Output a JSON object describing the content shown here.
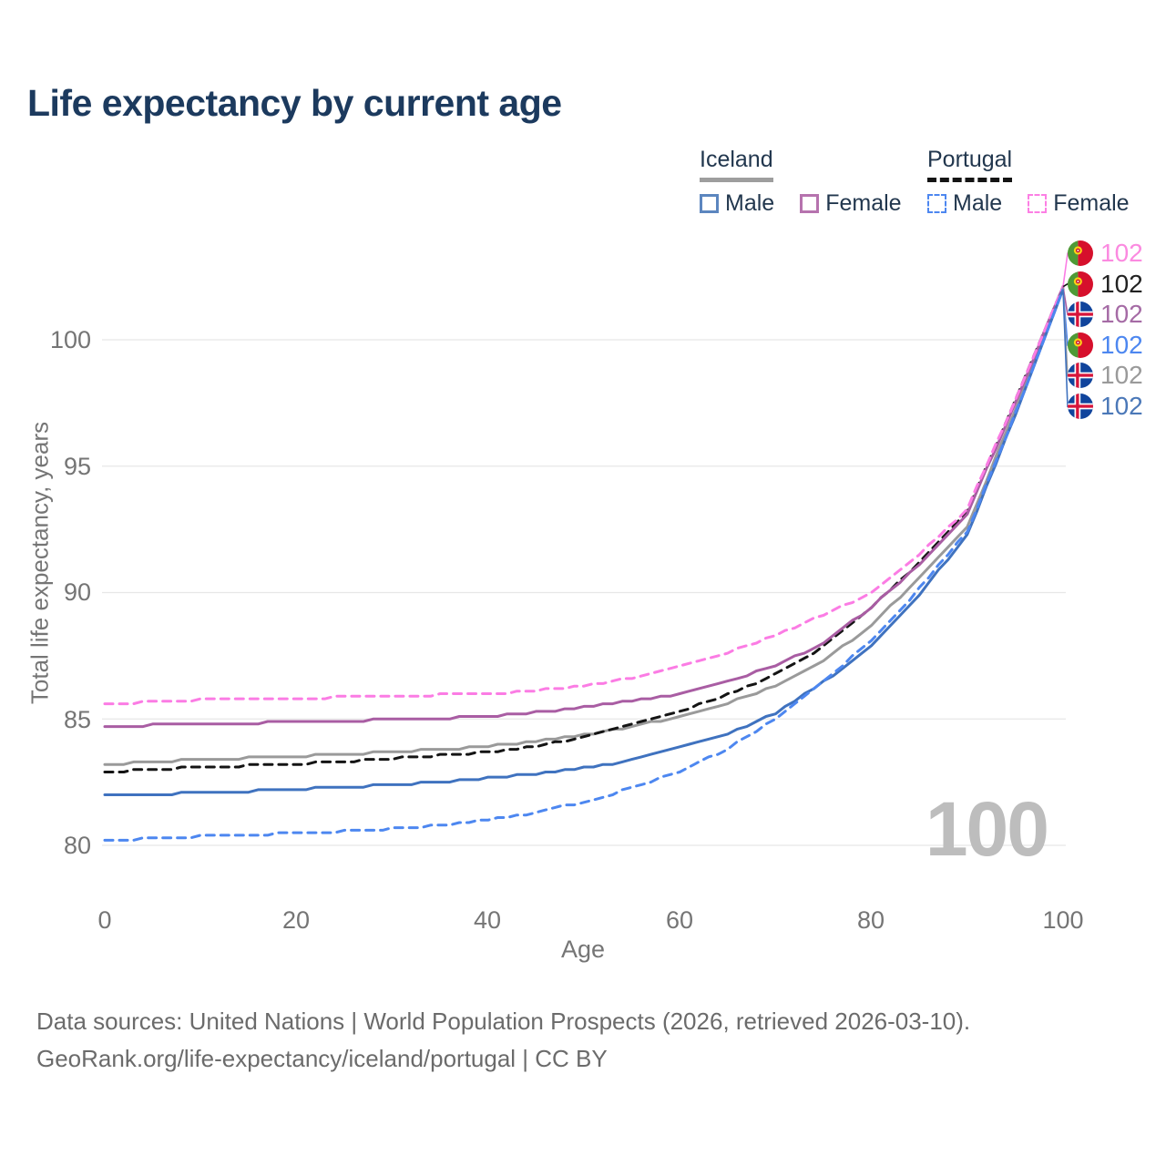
{
  "title": "Life expectancy by current age",
  "legend": {
    "groups": [
      {
        "label": "Iceland",
        "items": [
          {
            "label": "Male"
          },
          {
            "label": "Female"
          }
        ]
      },
      {
        "label": "Portugal",
        "items": [
          {
            "label": "Male"
          },
          {
            "label": "Female"
          }
        ]
      }
    ]
  },
  "axes": {
    "y_title": "Total life expectancy, years",
    "x_title": "Age",
    "yticks": [
      "80",
      "85",
      "90",
      "95",
      "100"
    ],
    "xticks": [
      "0",
      "20",
      "40",
      "60",
      "80",
      "100"
    ]
  },
  "watermark": "100",
  "end_labels": [
    {
      "flag": "portugal",
      "series": "portugal_female",
      "value": "102",
      "color": "#fb8ae0"
    },
    {
      "flag": "portugal",
      "series": "portugal_total",
      "value": "102",
      "color": "#222222"
    },
    {
      "flag": "iceland",
      "series": "iceland_female",
      "value": "102",
      "color": "#a56ba5"
    },
    {
      "flag": "portugal",
      "series": "portugal_male",
      "value": "102",
      "color": "#4d87f0"
    },
    {
      "flag": "iceland",
      "series": "iceland_total",
      "value": "102",
      "color": "#9a9a9a"
    },
    {
      "flag": "iceland",
      "series": "iceland_male",
      "value": "102",
      "color": "#4b78b8"
    }
  ],
  "footer": {
    "line1": "Data sources: United Nations | World Population Prospects (2026, retrieved 2026-03-10).",
    "line2": "GeoRank.org/life-expectancy/iceland/portugal | CC BY"
  },
  "chart_data": {
    "type": "line",
    "title": "Life expectancy by current age",
    "xlabel": "Age",
    "ylabel": "Total life expectancy, years",
    "xlim": [
      0,
      100
    ],
    "ylim": [
      79,
      103
    ],
    "xticks": [
      0,
      20,
      40,
      60,
      80,
      100
    ],
    "yticks": [
      80,
      85,
      90,
      95,
      100
    ],
    "grid": "horizontal",
    "legend_position": "top-right",
    "x": [
      0,
      5,
      10,
      15,
      20,
      25,
      30,
      35,
      40,
      45,
      50,
      55,
      60,
      65,
      70,
      75,
      80,
      85,
      90,
      95,
      100
    ],
    "series": [
      {
        "key": "iceland_total",
        "name": "Iceland Total",
        "color": "#9a9a9a",
        "dash": false,
        "values": [
          83.2,
          83.32,
          83.38,
          83.45,
          83.52,
          83.6,
          83.7,
          83.8,
          83.92,
          84.1,
          84.35,
          84.7,
          85.1,
          85.62,
          86.32,
          87.32,
          88.7,
          90.6,
          92.6,
          97.2,
          102.05
        ]
      },
      {
        "key": "portugal_total",
        "name": "Portugal Total",
        "color": "#141414",
        "dash": true,
        "values": [
          82.9,
          83.02,
          83.08,
          83.15,
          83.22,
          83.32,
          83.44,
          83.56,
          83.7,
          83.92,
          84.26,
          84.76,
          85.3,
          85.95,
          86.76,
          87.86,
          89.4,
          91.2,
          93.2,
          97.6,
          102.1
        ]
      },
      {
        "key": "iceland_female",
        "name": "Iceland Female",
        "color": "#a95da3",
        "dash": false,
        "values": [
          84.65,
          84.75,
          84.8,
          84.84,
          84.88,
          84.92,
          84.97,
          85.03,
          85.12,
          85.25,
          85.45,
          85.7,
          86.0,
          86.5,
          87.12,
          88.0,
          89.42,
          91.1,
          93.1,
          97.5,
          102.1
        ]
      },
      {
        "key": "portugal_female",
        "name": "Portugal Female",
        "color": "#fb7ce4",
        "dash": true,
        "values": [
          85.55,
          85.7,
          85.75,
          85.78,
          85.82,
          85.86,
          85.9,
          85.95,
          86.0,
          86.12,
          86.32,
          86.62,
          87.05,
          87.62,
          88.32,
          89.12,
          90.0,
          91.5,
          93.3,
          97.6,
          102.1
        ]
      },
      {
        "key": "iceland_male",
        "name": "Iceland Male",
        "color": "#3f72bf",
        "dash": false,
        "values": [
          81.95,
          82.02,
          82.08,
          82.14,
          82.22,
          82.3,
          82.4,
          82.52,
          82.65,
          82.82,
          83.05,
          83.36,
          83.85,
          84.42,
          85.22,
          86.45,
          87.85,
          89.9,
          92.3,
          97.0,
          102.0
        ]
      },
      {
        "key": "portugal_male",
        "name": "Portugal Male",
        "color": "#4d87f0",
        "dash": true,
        "values": [
          80.15,
          80.3,
          80.36,
          80.42,
          80.48,
          80.56,
          80.66,
          80.8,
          81.0,
          81.3,
          81.72,
          82.26,
          82.92,
          83.82,
          85.02,
          86.5,
          88.1,
          90.15,
          92.4,
          97.05,
          102.0
        ]
      }
    ]
  }
}
